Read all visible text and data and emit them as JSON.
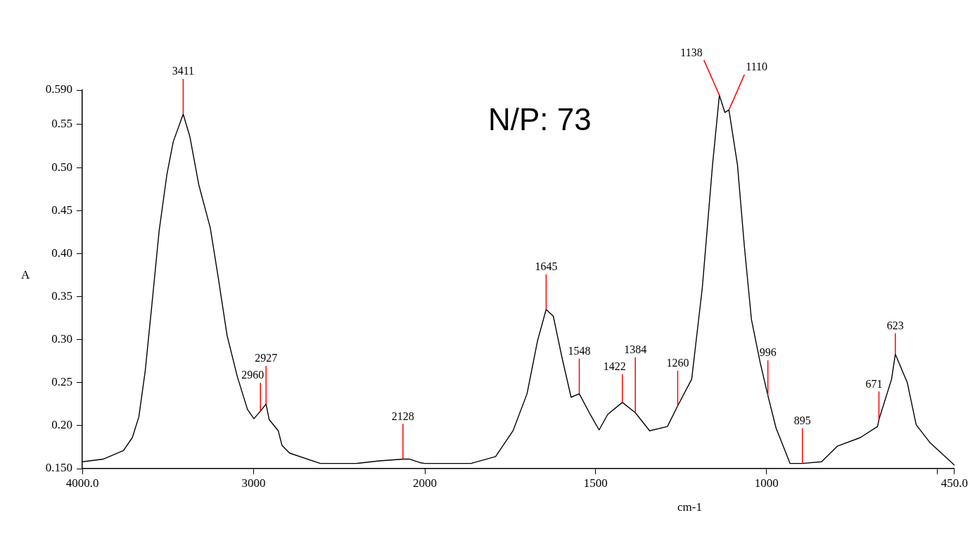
{
  "chart_data": [
    {
      "type": "line",
      "ylabel": "A",
      "xlim": [
        4000,
        2000
      ],
      "xticks": [
        {
          "value": 4000,
          "label": "4000.0"
        },
        3000,
        2000
      ],
      "ylim": [
        0.15,
        0.59
      ],
      "yticks": [
        {
          "value": 0.15,
          "label": "0.150"
        },
        {
          "value": 0.2,
          "label": "0.20"
        },
        {
          "value": 0.25,
          "label": "0.25"
        },
        {
          "value": 0.3,
          "label": "0.30"
        },
        {
          "value": 0.35,
          "label": "0.35"
        },
        {
          "value": 0.4,
          "label": "0.40"
        },
        {
          "value": 0.45,
          "label": "0.45"
        },
        {
          "value": 0.5,
          "label": "0.50"
        },
        {
          "value": 0.55,
          "label": "0.55"
        },
        {
          "value": 0.59,
          "label": "0.590"
        }
      ],
      "grid": false,
      "legend": false,
      "marker": "none",
      "line_style": "solid",
      "series": [
        {
          "color": "#000000",
          "x": [
            4000,
            3879,
            3760,
            3708,
            3670,
            3633,
            3595,
            3551,
            3506,
            3469,
            3411,
            3372,
            3320,
            3253,
            3207,
            3155,
            3095,
            3036,
            2998,
            2960,
            2927,
            2909,
            2856,
            2834,
            2789,
            2610,
            2402,
            2267,
            2128,
            2088,
            2029,
            2000
          ],
          "values": [
            0.158,
            0.161,
            0.171,
            0.186,
            0.21,
            0.263,
            0.338,
            0.427,
            0.492,
            0.53,
            0.562,
            0.536,
            0.48,
            0.43,
            0.373,
            0.305,
            0.257,
            0.219,
            0.208,
            0.217,
            0.225,
            0.207,
            0.194,
            0.177,
            0.168,
            0.156,
            0.156,
            0.159,
            0.161,
            0.161,
            0.157,
            0.156
          ]
        }
      ],
      "annotations": [
        {
          "text": "3411",
          "x": 3411,
          "y": 0.562
        },
        {
          "text": "2960",
          "x": 2960,
          "y": 0.217
        },
        {
          "text": "2927",
          "x": 2927,
          "y": 0.225
        },
        {
          "text": "2128",
          "x": 2128,
          "y": 0.161
        }
      ]
    },
    {
      "type": "line",
      "xlabel": "cm-1",
      "tick_labels": "x",
      "xlim": [
        2000,
        450
      ],
      "xticks": [
        1500,
        1000,
        {
          "value": 500,
          "label": null
        },
        {
          "value": 450,
          "label": "450.0"
        }
      ],
      "ylim": [
        0.15,
        0.59
      ],
      "grid": false,
      "legend": false,
      "marker": "none",
      "line_style": "solid",
      "series": [
        {
          "color": "#000000",
          "x": [
            2000,
            1865,
            1793,
            1742,
            1701,
            1670,
            1645,
            1624,
            1598,
            1572,
            1548,
            1516,
            1490,
            1465,
            1422,
            1384,
            1342,
            1290,
            1260,
            1219,
            1188,
            1158,
            1138,
            1122,
            1110,
            1085,
            1065,
            1044,
            1019,
            996,
            972,
            931,
            895,
            839,
            793,
            726,
            675,
            671,
            634,
            623,
            588,
            562,
            521,
            450
          ],
          "values": [
            0.156,
            0.156,
            0.164,
            0.194,
            0.237,
            0.299,
            0.335,
            0.327,
            0.278,
            0.233,
            0.237,
            0.213,
            0.195,
            0.213,
            0.227,
            0.215,
            0.194,
            0.199,
            0.223,
            0.254,
            0.36,
            0.503,
            0.584,
            0.564,
            0.567,
            0.503,
            0.409,
            0.323,
            0.274,
            0.235,
            0.197,
            0.156,
            0.156,
            0.158,
            0.176,
            0.186,
            0.199,
            0.207,
            0.254,
            0.283,
            0.25,
            0.201,
            0.18,
            0.154
          ]
        }
      ],
      "annotations": [
        {
          "text": "1645",
          "x": 1645,
          "y": 0.335
        },
        {
          "text": "1548",
          "x": 1548,
          "y": 0.237
        },
        {
          "text": "1422",
          "x": 1422,
          "y": 0.227
        },
        {
          "text": "1384",
          "x": 1384,
          "y": 0.215
        },
        {
          "text": "1260",
          "x": 1260,
          "y": 0.223
        },
        {
          "text": "1138",
          "x": 1138,
          "y": 0.584
        },
        {
          "text": "1110",
          "x": 1110,
          "y": 0.567
        },
        {
          "text": "996",
          "x": 996,
          "y": 0.235
        },
        {
          "text": "895",
          "x": 895,
          "y": 0.156
        },
        {
          "text": "671",
          "x": 671,
          "y": 0.207
        },
        {
          "text": "623",
          "x": 623,
          "y": 0.283
        },
        "N/P: 73"
      ]
    }
  ]
}
